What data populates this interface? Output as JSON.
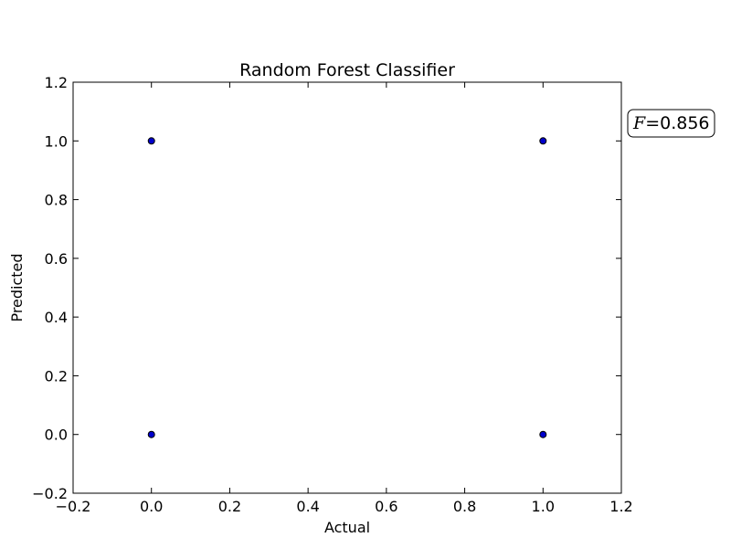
{
  "chart_data": {
    "type": "scatter",
    "title": "Random Forest Classifier",
    "xlabel": "Actual",
    "ylabel": "Predicted",
    "xlim": [
      -0.2,
      1.2
    ],
    "ylim": [
      -0.2,
      1.2
    ],
    "xticks": [
      -0.2,
      0.0,
      0.2,
      0.4,
      0.6,
      0.8,
      1.0,
      1.2
    ],
    "yticks": [
      -0.2,
      0.0,
      0.2,
      0.4,
      0.6,
      0.8,
      1.0,
      1.2
    ],
    "xtick_labels": [
      "−0.2",
      "0.0",
      "0.2",
      "0.4",
      "0.6",
      "0.8",
      "1.0",
      "1.2"
    ],
    "ytick_labels": [
      "−0.2",
      "0.0",
      "0.2",
      "0.4",
      "0.6",
      "0.8",
      "1.0",
      "1.2"
    ],
    "grid": false,
    "points": [
      {
        "x": 0,
        "y": 1
      },
      {
        "x": 1,
        "y": 1
      },
      {
        "x": 0,
        "y": 0
      },
      {
        "x": 1,
        "y": 0
      }
    ],
    "marker_color": "#0000cc",
    "annotation": {
      "symbol": "F",
      "text": "=0.856"
    }
  }
}
